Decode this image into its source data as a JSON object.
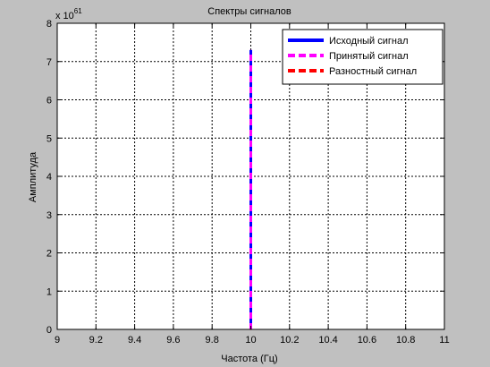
{
  "chart_data": {
    "type": "line",
    "title": "Спектры сигналов",
    "xlabel": "Частота (Гц)",
    "ylabel": "Амплитуда",
    "exponent_label": "x 10",
    "exponent_power": "61",
    "y_multiplier_exponent": 61,
    "xlim": [
      9,
      11
    ],
    "ylim": [
      0,
      8
    ],
    "x_ticks": [
      9,
      9.2,
      9.4,
      9.6,
      9.8,
      10,
      10.2,
      10.4,
      10.6,
      10.8,
      11
    ],
    "x_tick_labels": [
      "9",
      "9.2",
      "9.4",
      "9.6",
      "9.8",
      "10",
      "10.2",
      "10.4",
      "10.6",
      "10.8",
      "11"
    ],
    "y_ticks": [
      0,
      1,
      2,
      3,
      4,
      5,
      6,
      7,
      8
    ],
    "y_tick_labels": [
      "0",
      "1",
      "2",
      "3",
      "4",
      "5",
      "6",
      "7",
      "8"
    ],
    "grid": true,
    "legend_position": "top-right",
    "series": [
      {
        "name": "Исходный сигнал",
        "color": "#0000ff",
        "style": "solid",
        "x": [
          10,
          10
        ],
        "y": [
          0,
          7.3
        ]
      },
      {
        "name": "Принятый сигнал",
        "color": "#ff00ff",
        "style": "dashed",
        "x": [
          10,
          10
        ],
        "y": [
          0,
          7.3
        ]
      },
      {
        "name": "Разностный сигнал",
        "color": "#ff0000",
        "style": "dashed",
        "x": [
          10,
          10
        ],
        "y": [
          0,
          0
        ]
      }
    ]
  }
}
